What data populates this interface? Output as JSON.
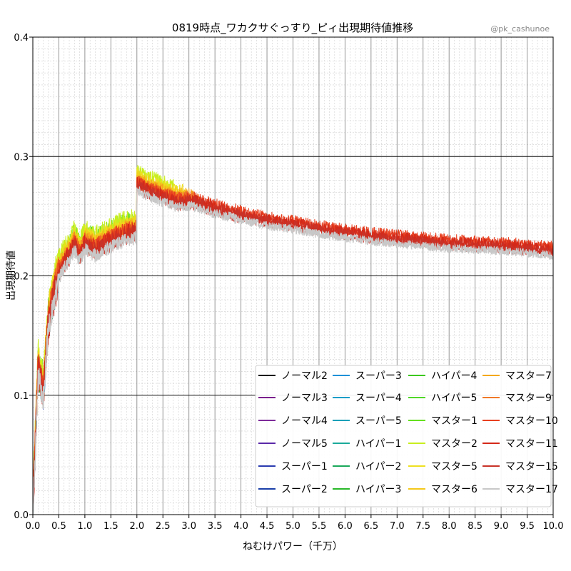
{
  "chart_data": {
    "type": "line",
    "title": "0819時点_ワカクサぐっすり_ピィ出現期待値推移",
    "credit": "@pk_cashunoe",
    "xlabel": "ねむけパワー（千万）",
    "ylabel": "出現期待値",
    "xlim": [
      0.0,
      10.0
    ],
    "ylim": [
      0.0,
      0.4
    ],
    "x_ticks": [
      "0.0",
      "0.5",
      "1.0",
      "1.5",
      "2.0",
      "2.5",
      "3.0",
      "3.5",
      "4.0",
      "4.5",
      "5.0",
      "5.5",
      "6.0",
      "6.5",
      "7.0",
      "7.5",
      "8.0",
      "8.5",
      "9.0",
      "9.5",
      "10.0"
    ],
    "y_ticks": [
      "0.0",
      "0.1",
      "0.2",
      "0.3",
      "0.4"
    ],
    "grid": true,
    "legend_placement": "lower-right",
    "envelope": {
      "x": [
        0.0,
        0.1,
        0.2,
        0.3,
        0.4,
        0.5,
        0.6,
        0.7,
        0.8,
        0.9,
        1.0,
        1.2,
        1.4,
        1.6,
        1.8,
        1.99,
        2.0,
        2.2,
        2.5,
        2.8,
        3.0,
        3.5,
        4.0,
        4.5,
        5.0,
        5.5,
        6.0,
        6.5,
        7.0,
        7.5,
        8.0,
        8.5,
        9.0,
        9.5,
        10.0
      ],
      "y": [
        0.0,
        0.12,
        0.1,
        0.16,
        0.18,
        0.2,
        0.21,
        0.215,
        0.225,
        0.215,
        0.225,
        0.22,
        0.225,
        0.23,
        0.233,
        0.235,
        0.275,
        0.27,
        0.265,
        0.26,
        0.262,
        0.255,
        0.25,
        0.245,
        0.242,
        0.238,
        0.235,
        0.232,
        0.23,
        0.228,
        0.226,
        0.225,
        0.224,
        0.222,
        0.22
      ]
    },
    "series": [
      {
        "name": "ノーマル2",
        "color": "#111111",
        "xmax": 0.12,
        "lift": 0.0
      },
      {
        "name": "ノーマル3",
        "color": "#7a1f8c",
        "xmax": 0.15,
        "lift": 0.004
      },
      {
        "name": "ノーマル4",
        "color": "#7e2a9a",
        "xmax": 0.2,
        "lift": 0.003
      },
      {
        "name": "ノーマル5",
        "color": "#5a28a8",
        "xmax": 0.3,
        "lift": 0.004
      },
      {
        "name": "スーパー1",
        "color": "#2a3bb0",
        "xmax": 0.35,
        "lift": 0.003
      },
      {
        "name": "スーパー2",
        "color": "#1a3fa8",
        "xmax": 0.4,
        "lift": 0.002
      },
      {
        "name": "スーパー3",
        "color": "#1e90d8",
        "xmax": 0.55,
        "lift": 0.003
      },
      {
        "name": "スーパー4",
        "color": "#1a9ec8",
        "xmax": 0.6,
        "lift": 0.002
      },
      {
        "name": "スーパー5",
        "color": "#1aa0b8",
        "xmax": 0.7,
        "lift": 0.002
      },
      {
        "name": "ハイパー1",
        "color": "#1aaa9a",
        "xmax": 0.85,
        "lift": 0.003
      },
      {
        "name": "ハイパー2",
        "color": "#1aa85a",
        "xmax": 0.95,
        "lift": 0.003
      },
      {
        "name": "ハイパー3",
        "color": "#28b828",
        "xmax": 1.1,
        "lift": 0.003
      },
      {
        "name": "ハイパー4",
        "color": "#3cc81e",
        "xmax": 1.4,
        "lift": 0.006
      },
      {
        "name": "ハイパー5",
        "color": "#50d828",
        "xmax": 1.7,
        "lift": 0.008
      },
      {
        "name": "マスター1",
        "color": "#66e020",
        "xmax": 1.95,
        "lift": 0.012
      },
      {
        "name": "マスター2",
        "color": "#c8ee1e",
        "xmax": 2.7,
        "lift": 0.014
      },
      {
        "name": "マスター5",
        "color": "#eee020",
        "xmax": 2.9,
        "lift": 0.01
      },
      {
        "name": "マスター6",
        "color": "#f4c81a",
        "xmax": 3.0,
        "lift": 0.008
      },
      {
        "name": "マスター7",
        "color": "#f4a81a",
        "xmax": 3.1,
        "lift": 0.006
      },
      {
        "name": "マスター9",
        "color": "#f07828",
        "xmax": 3.2,
        "lift": 0.004
      },
      {
        "name": "マスター10",
        "color": "#e84020",
        "xmax": 10.0,
        "lift": 0.004
      },
      {
        "name": "マスター11",
        "color": "#d42818",
        "xmax": 10.0,
        "lift": 0.002
      },
      {
        "name": "マスター15",
        "color": "#c83228",
        "xmax": 10.0,
        "lift": 0.0
      },
      {
        "name": "マスター17",
        "color": "#c8c8c8",
        "xmax": 10.0,
        "lift": -0.003
      }
    ]
  }
}
